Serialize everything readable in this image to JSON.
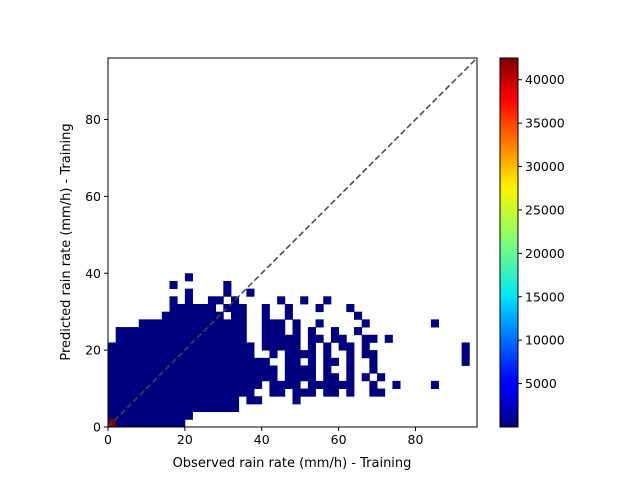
{
  "chart_data": {
    "type": "heatmap",
    "title": "",
    "xlabel": "Observed rain rate (mm/h) - Training",
    "ylabel": "Predicted rain rate (mm/h) - Training",
    "xlim": [
      0,
      96
    ],
    "ylim": [
      0,
      96
    ],
    "bin_size": 2.0,
    "x_ticks": [
      0,
      20,
      40,
      60,
      80
    ],
    "y_ticks": [
      0,
      20,
      40,
      60,
      80
    ],
    "reference_line": "y = x",
    "colormap": "jet",
    "colorbar_range": [
      1,
      42500
    ],
    "colorbar_ticks": [
      5000,
      10000,
      15000,
      20000,
      25000,
      30000,
      35000,
      40000
    ],
    "colors": {
      "low": "#00007f",
      "high": "#7f0000",
      "ref_line": "#444444"
    },
    "max_cell": {
      "x": 0,
      "y": 0,
      "count": 42500
    },
    "low_bins": {
      "0": [
        [
          0,
          9
        ]
      ],
      "1": [
        [
          0,
          10
        ]
      ],
      "2": [
        [
          0,
          16
        ]
      ],
      "3": [
        [
          0,
          16
        ],
        [
          18,
          19
        ],
        [
          24,
          24
        ]
      ],
      "4": [
        [
          0,
          18
        ],
        [
          21,
          22
        ],
        [
          24,
          26
        ],
        [
          28,
          29
        ],
        [
          31,
          31
        ],
        [
          34,
          35
        ]
      ],
      "5": [
        [
          0,
          19
        ],
        [
          21,
          24
        ],
        [
          26,
          31
        ],
        [
          34,
          34
        ],
        [
          37,
          37
        ],
        [
          42,
          42
        ]
      ],
      "6": [
        [
          0,
          21
        ],
        [
          23,
          26
        ],
        [
          28,
          29
        ],
        [
          31,
          31
        ],
        [
          33,
          33
        ],
        [
          35,
          35
        ]
      ],
      "7": [
        [
          0,
          21
        ],
        [
          23,
          26
        ],
        [
          28,
          28
        ],
        [
          31,
          31
        ],
        [
          34,
          34
        ]
      ],
      "8": [
        [
          0,
          20
        ],
        [
          23,
          24
        ],
        [
          26,
          26
        ],
        [
          28,
          29
        ],
        [
          31,
          31
        ],
        [
          34,
          34
        ],
        [
          46,
          46
        ]
      ],
      "9": [
        [
          0,
          18
        ],
        [
          21,
          21
        ],
        [
          23,
          26
        ],
        [
          28,
          28
        ],
        [
          31,
          31
        ],
        [
          33,
          33
        ],
        [
          34,
          34
        ],
        [
          46,
          46
        ]
      ],
      "10": [
        [
          0,
          18
        ],
        [
          20,
          24
        ],
        [
          26,
          26
        ],
        [
          28,
          28
        ],
        [
          30,
          31
        ],
        [
          33,
          33
        ],
        [
          46,
          46
        ]
      ],
      "11": [
        [
          1,
          17
        ],
        [
          20,
          24
        ],
        [
          26,
          27
        ],
        [
          29,
          30
        ],
        [
          33,
          34
        ],
        [
          36,
          36
        ]
      ],
      "12": [
        [
          1,
          17
        ],
        [
          20,
          22
        ],
        [
          24,
          24
        ],
        [
          26,
          26
        ],
        [
          29,
          29
        ],
        [
          32,
          32
        ]
      ],
      "13": [
        [
          4,
          17
        ],
        [
          20,
          22
        ],
        [
          24,
          24
        ],
        [
          27,
          27
        ],
        [
          33,
          33
        ],
        [
          42,
          42
        ]
      ],
      "14": [
        [
          7,
          14
        ],
        [
          16,
          17
        ],
        [
          20,
          20
        ],
        [
          23,
          23
        ],
        [
          32,
          32
        ]
      ],
      "15": [
        [
          8,
          13
        ],
        [
          15,
          17
        ],
        [
          20,
          20
        ],
        [
          23,
          23
        ],
        [
          27,
          27
        ],
        [
          31,
          31
        ]
      ],
      "16": [
        [
          8,
          8
        ],
        [
          10,
          10
        ],
        [
          13,
          14
        ],
        [
          16,
          16
        ],
        [
          22,
          22
        ],
        [
          25,
          25
        ],
        [
          28,
          28
        ]
      ],
      "17": [
        [
          10,
          10
        ],
        [
          15,
          15
        ],
        [
          18,
          18
        ]
      ],
      "18": [
        [
          8,
          8
        ],
        [
          15,
          15
        ]
      ],
      "19": [
        [
          10,
          10
        ]
      ]
    }
  }
}
